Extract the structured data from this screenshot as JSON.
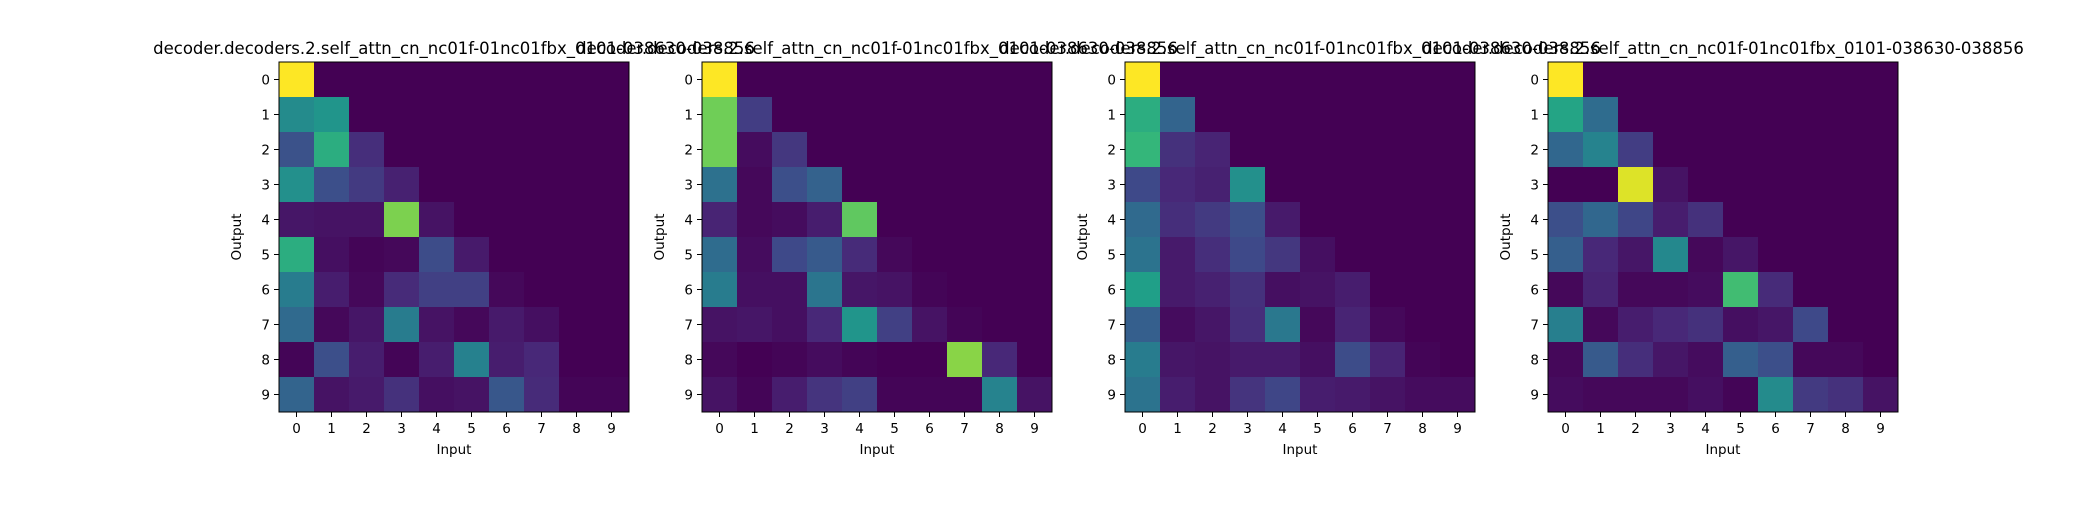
{
  "chart_data": [
    {
      "type": "heatmap",
      "title": "decoder.decoders.2.self_attn_cn_nc01f-01nc01fbx_0101-038630-038856",
      "xlabel": "Input",
      "ylabel": "Output",
      "x_ticks": [
        "0",
        "1",
        "2",
        "3",
        "4",
        "5",
        "6",
        "7",
        "8",
        "9"
      ],
      "y_ticks": [
        "0",
        "1",
        "2",
        "3",
        "4",
        "5",
        "6",
        "7",
        "8",
        "9"
      ],
      "colormap": "viridis",
      "value_range": [
        0,
        1
      ],
      "values": [
        [
          1.0,
          0.0,
          0.0,
          0.0,
          0.0,
          0.0,
          0.0,
          0.0,
          0.0,
          0.0
        ],
        [
          0.48,
          0.52,
          0.0,
          0.0,
          0.0,
          0.0,
          0.0,
          0.0,
          0.0,
          0.0
        ],
        [
          0.25,
          0.62,
          0.13,
          0.0,
          0.0,
          0.0,
          0.0,
          0.0,
          0.0,
          0.0
        ],
        [
          0.5,
          0.24,
          0.17,
          0.09,
          0.0,
          0.0,
          0.0,
          0.0,
          0.0,
          0.0
        ],
        [
          0.06,
          0.05,
          0.05,
          0.8,
          0.05,
          0.0,
          0.0,
          0.0,
          0.0,
          0.0
        ],
        [
          0.62,
          0.04,
          0.01,
          0.02,
          0.23,
          0.07,
          0.0,
          0.0,
          0.0,
          0.0
        ],
        [
          0.42,
          0.08,
          0.02,
          0.12,
          0.19,
          0.19,
          0.02,
          0.0,
          0.0,
          0.0
        ],
        [
          0.34,
          0.02,
          0.06,
          0.42,
          0.05,
          0.02,
          0.07,
          0.04,
          0.0,
          0.0
        ],
        [
          0.01,
          0.24,
          0.08,
          0.01,
          0.08,
          0.44,
          0.08,
          0.11,
          0.0,
          0.0
        ],
        [
          0.32,
          0.05,
          0.07,
          0.14,
          0.04,
          0.05,
          0.27,
          0.12,
          0.01,
          0.01
        ]
      ]
    },
    {
      "type": "heatmap",
      "title": "decoder.decoders.2.self_attn_cn_nc01f-01nc01fbx_0101-038630-038856",
      "xlabel": "Input",
      "ylabel": "Output",
      "x_ticks": [
        "0",
        "1",
        "2",
        "3",
        "4",
        "5",
        "6",
        "7",
        "8",
        "9"
      ],
      "y_ticks": [
        "0",
        "1",
        "2",
        "3",
        "4",
        "5",
        "6",
        "7",
        "8",
        "9"
      ],
      "colormap": "viridis",
      "value_range": [
        0,
        1
      ],
      "values": [
        [
          1.0,
          0.0,
          0.0,
          0.0,
          0.0,
          0.0,
          0.0,
          0.0,
          0.0,
          0.0
        ],
        [
          0.78,
          0.18,
          0.0,
          0.0,
          0.0,
          0.0,
          0.0,
          0.0,
          0.0,
          0.0
        ],
        [
          0.78,
          0.03,
          0.16,
          0.0,
          0.0,
          0.0,
          0.0,
          0.0,
          0.0,
          0.0
        ],
        [
          0.37,
          0.02,
          0.24,
          0.31,
          0.0,
          0.0,
          0.0,
          0.0,
          0.0,
          0.0
        ],
        [
          0.1,
          0.02,
          0.03,
          0.08,
          0.75,
          0.0,
          0.0,
          0.0,
          0.0,
          0.0
        ],
        [
          0.35,
          0.03,
          0.22,
          0.28,
          0.12,
          0.02,
          0.0,
          0.0,
          0.0,
          0.0
        ],
        [
          0.42,
          0.04,
          0.04,
          0.39,
          0.06,
          0.05,
          0.01,
          0.0,
          0.0,
          0.0
        ],
        [
          0.05,
          0.06,
          0.04,
          0.11,
          0.52,
          0.19,
          0.05,
          0.01,
          0.0,
          0.0
        ],
        [
          0.02,
          0.0,
          0.01,
          0.03,
          0.01,
          0.0,
          0.0,
          0.82,
          0.11,
          0.0
        ],
        [
          0.05,
          0.01,
          0.08,
          0.15,
          0.19,
          0.01,
          0.01,
          0.01,
          0.45,
          0.05
        ]
      ]
    },
    {
      "type": "heatmap",
      "title": "decoder.decoders.2.self_attn_cn_nc01f-01nc01fbx_0101-038630-038856",
      "xlabel": "Input",
      "ylabel": "Output",
      "x_ticks": [
        "0",
        "1",
        "2",
        "3",
        "4",
        "5",
        "6",
        "7",
        "8",
        "9"
      ],
      "y_ticks": [
        "0",
        "1",
        "2",
        "3",
        "4",
        "5",
        "6",
        "7",
        "8",
        "9"
      ],
      "colormap": "viridis",
      "value_range": [
        0,
        1
      ],
      "values": [
        [
          1.0,
          0.0,
          0.0,
          0.0,
          0.0,
          0.0,
          0.0,
          0.0,
          0.0,
          0.0
        ],
        [
          0.62,
          0.32,
          0.0,
          0.0,
          0.0,
          0.0,
          0.0,
          0.0,
          0.0,
          0.0
        ],
        [
          0.66,
          0.14,
          0.1,
          0.0,
          0.0,
          0.0,
          0.0,
          0.0,
          0.0,
          0.0
        ],
        [
          0.22,
          0.11,
          0.09,
          0.5,
          0.0,
          0.0,
          0.0,
          0.0,
          0.0,
          0.0
        ],
        [
          0.34,
          0.13,
          0.17,
          0.24,
          0.07,
          0.0,
          0.0,
          0.0,
          0.0,
          0.0
        ],
        [
          0.38,
          0.07,
          0.13,
          0.22,
          0.16,
          0.04,
          0.0,
          0.0,
          0.0,
          0.0
        ],
        [
          0.56,
          0.07,
          0.09,
          0.14,
          0.04,
          0.05,
          0.08,
          0.0,
          0.0,
          0.0
        ],
        [
          0.3,
          0.03,
          0.06,
          0.13,
          0.4,
          0.02,
          0.1,
          0.02,
          0.0,
          0.0
        ],
        [
          0.42,
          0.06,
          0.05,
          0.07,
          0.07,
          0.04,
          0.23,
          0.1,
          0.01,
          0.0
        ],
        [
          0.38,
          0.08,
          0.05,
          0.15,
          0.21,
          0.08,
          0.07,
          0.05,
          0.03,
          0.03
        ]
      ]
    },
    {
      "type": "heatmap",
      "title": "decoder.decoders.2.self_attn_cn_nc01f-01nc01fbx_0101-038630-038856",
      "xlabel": "Input",
      "ylabel": "Output",
      "x_ticks": [
        "0",
        "1",
        "2",
        "3",
        "4",
        "5",
        "6",
        "7",
        "8",
        "9"
      ],
      "y_ticks": [
        "0",
        "1",
        "2",
        "3",
        "4",
        "5",
        "6",
        "7",
        "8",
        "9"
      ],
      "colormap": "viridis",
      "value_range": [
        0,
        1
      ],
      "values": [
        [
          1.0,
          0.0,
          0.0,
          0.0,
          0.0,
          0.0,
          0.0,
          0.0,
          0.0,
          0.0
        ],
        [
          0.58,
          0.35,
          0.0,
          0.0,
          0.0,
          0.0,
          0.0,
          0.0,
          0.0,
          0.0
        ],
        [
          0.33,
          0.45,
          0.18,
          0.0,
          0.0,
          0.0,
          0.0,
          0.0,
          0.0,
          0.0
        ],
        [
          0.0,
          0.0,
          0.95,
          0.05,
          0.0,
          0.0,
          0.0,
          0.0,
          0.0,
          0.0
        ],
        [
          0.24,
          0.33,
          0.21,
          0.08,
          0.14,
          0.0,
          0.0,
          0.0,
          0.0,
          0.0
        ],
        [
          0.3,
          0.11,
          0.06,
          0.47,
          0.02,
          0.06,
          0.0,
          0.0,
          0.0,
          0.0
        ],
        [
          0.02,
          0.1,
          0.02,
          0.02,
          0.03,
          0.69,
          0.12,
          0.0,
          0.0,
          0.0
        ],
        [
          0.43,
          0.02,
          0.08,
          0.11,
          0.14,
          0.04,
          0.06,
          0.22,
          0.0,
          0.0
        ],
        [
          0.02,
          0.28,
          0.13,
          0.06,
          0.03,
          0.3,
          0.24,
          0.02,
          0.02,
          0.0
        ],
        [
          0.03,
          0.02,
          0.02,
          0.02,
          0.04,
          0.01,
          0.48,
          0.17,
          0.14,
          0.05
        ]
      ]
    }
  ]
}
